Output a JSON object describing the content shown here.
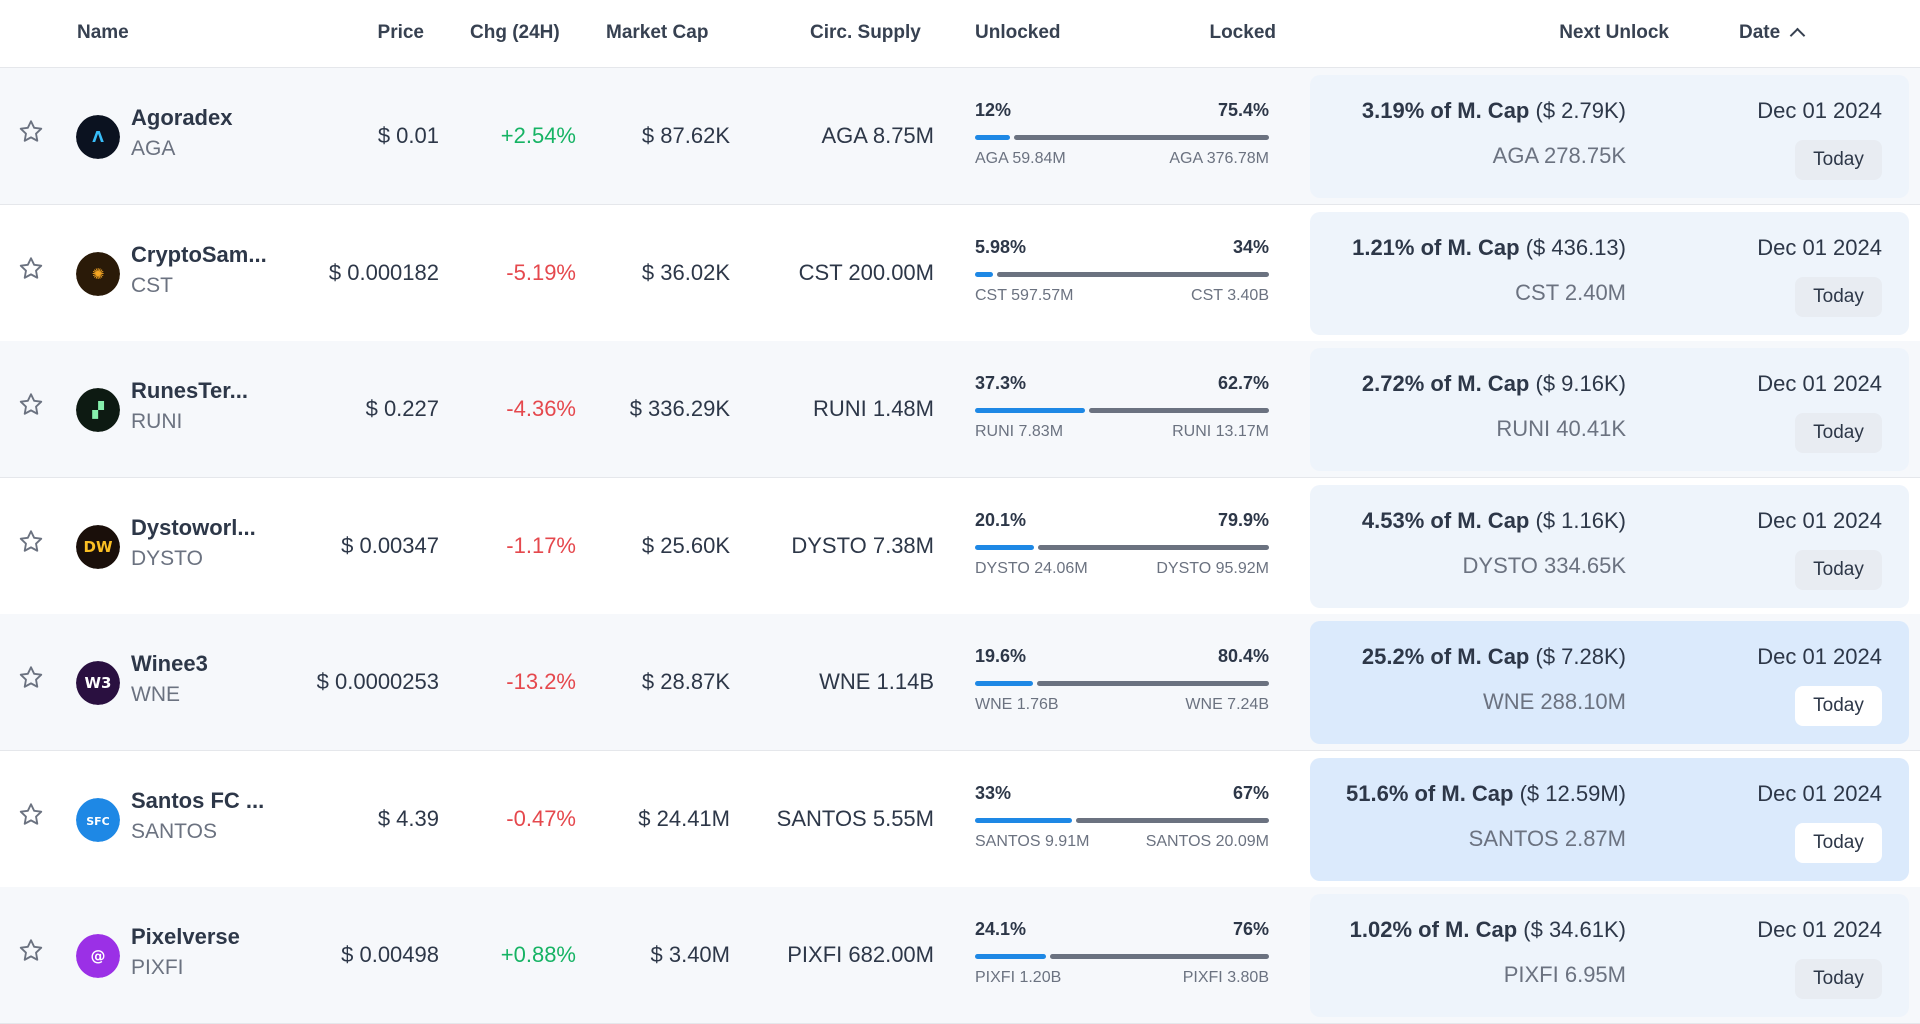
{
  "columns": {
    "name": "Name",
    "price": "Price",
    "chg": "Chg (24H)",
    "market_cap": "Market Cap",
    "circ_supply": "Circ. Supply",
    "unlocked": "Unlocked",
    "locked": "Locked",
    "next_unlock": "Next Unlock",
    "date": "Date"
  },
  "rows": [
    {
      "name": "Agoradex",
      "symbol": "AGA",
      "price": "$ 0.01",
      "change": "+2.54%",
      "direction": "up",
      "market_cap": "$ 87.62K",
      "circ_supply": "AGA 8.75M",
      "unlocked_pct": "12%",
      "locked_pct": "75.4%",
      "unlocked_fraction": 0.12,
      "unlocked_amt": "AGA 59.84M",
      "locked_amt": "AGA 376.78M",
      "unlock_pct": "3.19% of M. Cap",
      "unlock_value": "($ 2.79K)",
      "unlock_amt": "AGA 278.75K",
      "date": "Dec 01 2024",
      "relative": "Today",
      "highlight": false,
      "logo_color": "#0b1220",
      "logo_glyph": "Λ",
      "logo_fg": "#38bdf8"
    },
    {
      "name": "CryptoSam...",
      "symbol": "CST",
      "price": "$ 0.000182",
      "change": "-5.19%",
      "direction": "down",
      "market_cap": "$ 36.02K",
      "circ_supply": "CST 200.00M",
      "unlocked_pct": "5.98%",
      "locked_pct": "34%",
      "unlocked_fraction": 0.0598,
      "unlocked_amt": "CST 597.57M",
      "locked_amt": "CST 3.40B",
      "unlock_pct": "1.21% of M. Cap",
      "unlock_value": "($ 436.13)",
      "unlock_amt": "CST 2.40M",
      "date": "Dec 01 2024",
      "relative": "Today",
      "highlight": false,
      "logo_color": "#2a1a08",
      "logo_glyph": "✺",
      "logo_fg": "#f5a623"
    },
    {
      "name": "RunesTer...",
      "symbol": "RUNI",
      "price": "$ 0.227",
      "change": "-4.36%",
      "direction": "down",
      "market_cap": "$ 336.29K",
      "circ_supply": "RUNI 1.48M",
      "unlocked_pct": "37.3%",
      "locked_pct": "62.7%",
      "unlocked_fraction": 0.373,
      "unlocked_amt": "RUNI 7.83M",
      "locked_amt": "RUNI 13.17M",
      "unlock_pct": "2.72% of M. Cap",
      "unlock_value": "($ 9.16K)",
      "unlock_amt": "RUNI 40.41K",
      "date": "Dec 01 2024",
      "relative": "Today",
      "highlight": false,
      "logo_color": "#0d1a12",
      "logo_glyph": "▞",
      "logo_fg": "#86efac"
    },
    {
      "name": "Dystoworl...",
      "symbol": "DYSTO",
      "price": "$ 0.00347",
      "change": "-1.17%",
      "direction": "down",
      "market_cap": "$ 25.60K",
      "circ_supply": "DYSTO 7.38M",
      "unlocked_pct": "20.1%",
      "locked_pct": "79.9%",
      "unlocked_fraction": 0.201,
      "unlocked_amt": "DYSTO 24.06M",
      "locked_amt": "DYSTO 95.92M",
      "unlock_pct": "4.53% of M. Cap",
      "unlock_value": "($ 1.16K)",
      "unlock_amt": "DYSTO 334.65K",
      "date": "Dec 01 2024",
      "relative": "Today",
      "highlight": false,
      "logo_color": "#1a0f0a",
      "logo_glyph": "DW",
      "logo_fg": "#fbbf24"
    },
    {
      "name": "Winee3",
      "symbol": "WNE",
      "price": "$ 0.0000253",
      "change": "-13.2%",
      "direction": "down",
      "market_cap": "$ 28.87K",
      "circ_supply": "WNE 1.14B",
      "unlocked_pct": "19.6%",
      "locked_pct": "80.4%",
      "unlocked_fraction": 0.196,
      "unlocked_amt": "WNE 1.76B",
      "locked_amt": "WNE 7.24B",
      "unlock_pct": "25.2% of M. Cap",
      "unlock_value": "($ 7.28K)",
      "unlock_amt": "WNE 288.10M",
      "date": "Dec 01 2024",
      "relative": "Today",
      "highlight": true,
      "logo_color": "#2a1040",
      "logo_glyph": "W3",
      "logo_fg": "#ffffff"
    },
    {
      "name": "Santos FC ...",
      "symbol": "SANTOS",
      "price": "$ 4.39",
      "change": "-0.47%",
      "direction": "down",
      "market_cap": "$ 24.41M",
      "circ_supply": "SANTOS 5.55M",
      "unlocked_pct": "33%",
      "locked_pct": "67%",
      "unlocked_fraction": 0.33,
      "unlocked_amt": "SANTOS 9.91M",
      "locked_amt": "SANTOS 20.09M",
      "unlock_pct": "51.6% of M. Cap",
      "unlock_value": "($ 12.59M)",
      "unlock_amt": "SANTOS 2.87M",
      "date": "Dec 01 2024",
      "relative": "Today",
      "highlight": true,
      "logo_color": "#1e88e5",
      "logo_glyph": "SFC",
      "logo_fg": "#ffffff"
    },
    {
      "name": "Pixelverse",
      "symbol": "PIXFI",
      "price": "$ 0.00498",
      "change": "+0.88%",
      "direction": "up",
      "market_cap": "$ 3.40M",
      "circ_supply": "PIXFI 682.00M",
      "unlocked_pct": "24.1%",
      "locked_pct": "76%",
      "unlocked_fraction": 0.241,
      "unlocked_amt": "PIXFI 1.20B",
      "locked_amt": "PIXFI 3.80B",
      "unlock_pct": "1.02% of M. Cap",
      "unlock_value": "($ 34.61K)",
      "unlock_amt": "PIXFI 6.95M",
      "date": "Dec 01 2024",
      "relative": "Today",
      "highlight": false,
      "logo_color": "#9b30e6",
      "logo_glyph": "@",
      "logo_fg": "#ffffff"
    }
  ]
}
